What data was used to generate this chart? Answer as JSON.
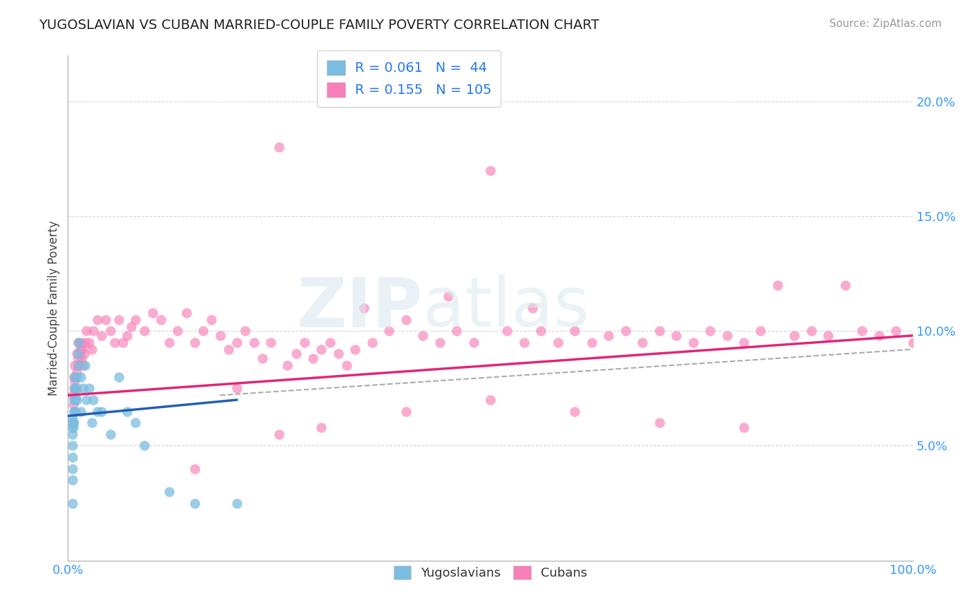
{
  "title": "YUGOSLAVIAN VS CUBAN MARRIED-COUPLE FAMILY POVERTY CORRELATION CHART",
  "source": "Source: ZipAtlas.com",
  "ylabel": "Married-Couple Family Poverty",
  "xlim": [
    0,
    1.0
  ],
  "ylim": [
    0,
    0.22
  ],
  "xticks": [
    0.0,
    1.0
  ],
  "xticklabels": [
    "0.0%",
    "100.0%"
  ],
  "yticks": [
    0.05,
    0.1,
    0.15,
    0.2
  ],
  "yticklabels": [
    "5.0%",
    "10.0%",
    "15.0%",
    "20.0%"
  ],
  "legend_r1": "R = 0.061",
  "legend_n1": "N =  44",
  "legend_r2": "R = 0.155",
  "legend_n2": "N = 105",
  "color_yugo": "#7bbde0",
  "color_cuban": "#f87fb8",
  "color_trend_yugo": "#2060b0",
  "color_trend_cuban": "#e0257a",
  "color_trend_dashed": "#aaaaaa",
  "yugo_x": [
    0.005,
    0.005,
    0.005,
    0.005,
    0.005,
    0.005,
    0.005,
    0.005,
    0.005,
    0.006,
    0.006,
    0.007,
    0.007,
    0.007,
    0.008,
    0.008,
    0.008,
    0.009,
    0.009,
    0.009,
    0.01,
    0.01,
    0.01,
    0.012,
    0.012,
    0.013,
    0.015,
    0.015,
    0.018,
    0.02,
    0.022,
    0.025,
    0.028,
    0.03,
    0.035,
    0.04,
    0.05,
    0.06,
    0.07,
    0.08,
    0.09,
    0.12,
    0.15,
    0.2
  ],
  "yugo_y": [
    0.062,
    0.06,
    0.058,
    0.055,
    0.05,
    0.045,
    0.04,
    0.035,
    0.025,
    0.06,
    0.058,
    0.07,
    0.065,
    0.06,
    0.08,
    0.075,
    0.065,
    0.075,
    0.07,
    0.065,
    0.08,
    0.075,
    0.07,
    0.09,
    0.085,
    0.095,
    0.08,
    0.065,
    0.075,
    0.085,
    0.07,
    0.075,
    0.06,
    0.07,
    0.065,
    0.065,
    0.055,
    0.08,
    0.065,
    0.06,
    0.05,
    0.03,
    0.025,
    0.025
  ],
  "cuban_x": [
    0.005,
    0.006,
    0.007,
    0.007,
    0.008,
    0.008,
    0.009,
    0.009,
    0.01,
    0.01,
    0.012,
    0.012,
    0.013,
    0.014,
    0.015,
    0.016,
    0.017,
    0.018,
    0.019,
    0.02,
    0.022,
    0.025,
    0.028,
    0.03,
    0.035,
    0.04,
    0.045,
    0.05,
    0.055,
    0.06,
    0.065,
    0.07,
    0.075,
    0.08,
    0.09,
    0.1,
    0.11,
    0.12,
    0.13,
    0.14,
    0.15,
    0.16,
    0.17,
    0.18,
    0.19,
    0.2,
    0.21,
    0.22,
    0.23,
    0.24,
    0.25,
    0.26,
    0.27,
    0.28,
    0.29,
    0.3,
    0.31,
    0.32,
    0.33,
    0.34,
    0.36,
    0.38,
    0.4,
    0.42,
    0.44,
    0.46,
    0.48,
    0.5,
    0.52,
    0.54,
    0.56,
    0.58,
    0.6,
    0.62,
    0.64,
    0.66,
    0.68,
    0.7,
    0.72,
    0.74,
    0.76,
    0.78,
    0.8,
    0.82,
    0.84,
    0.86,
    0.88,
    0.9,
    0.92,
    0.94,
    0.96,
    0.98,
    1.0,
    0.35,
    0.45,
    0.55,
    0.2,
    0.15,
    0.25,
    0.3,
    0.4,
    0.5,
    0.6,
    0.7,
    0.8
  ],
  "cuban_y": [
    0.072,
    0.068,
    0.08,
    0.075,
    0.085,
    0.078,
    0.08,
    0.072,
    0.09,
    0.082,
    0.095,
    0.088,
    0.085,
    0.092,
    0.095,
    0.088,
    0.092,
    0.085,
    0.09,
    0.095,
    0.1,
    0.095,
    0.092,
    0.1,
    0.105,
    0.098,
    0.105,
    0.1,
    0.095,
    0.105,
    0.095,
    0.098,
    0.102,
    0.105,
    0.1,
    0.108,
    0.105,
    0.095,
    0.1,
    0.108,
    0.095,
    0.1,
    0.105,
    0.098,
    0.092,
    0.095,
    0.1,
    0.095,
    0.088,
    0.095,
    0.18,
    0.085,
    0.09,
    0.095,
    0.088,
    0.092,
    0.095,
    0.09,
    0.085,
    0.092,
    0.095,
    0.1,
    0.105,
    0.098,
    0.095,
    0.1,
    0.095,
    0.17,
    0.1,
    0.095,
    0.1,
    0.095,
    0.1,
    0.095,
    0.098,
    0.1,
    0.095,
    0.1,
    0.098,
    0.095,
    0.1,
    0.098,
    0.095,
    0.1,
    0.12,
    0.098,
    0.1,
    0.098,
    0.12,
    0.1,
    0.098,
    0.1,
    0.095,
    0.11,
    0.115,
    0.11,
    0.075,
    0.04,
    0.055,
    0.058,
    0.065,
    0.07,
    0.065,
    0.06,
    0.058
  ],
  "yugo_trend_x": [
    0.0,
    0.2
  ],
  "yugo_trend_y": [
    0.063,
    0.07
  ],
  "cuban_trend_x": [
    0.0,
    1.0
  ],
  "cuban_trend_y": [
    0.072,
    0.098
  ],
  "dashed_trend_x": [
    0.18,
    1.0
  ],
  "dashed_trend_y": [
    0.072,
    0.092
  ]
}
